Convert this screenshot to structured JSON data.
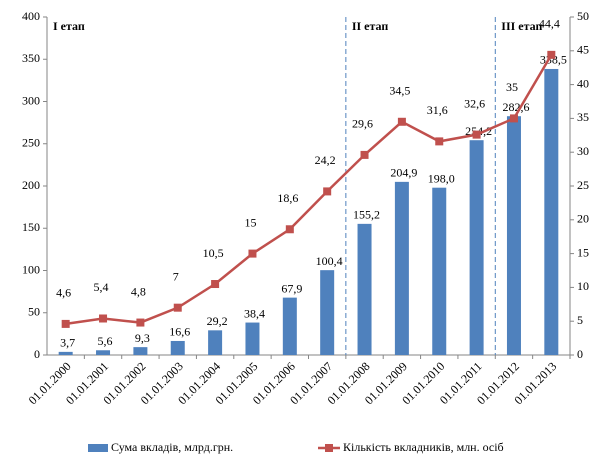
{
  "chart_data": {
    "type": "bar-line",
    "categories": [
      "01.01.2000",
      "01.01.2001",
      "01.01.2002",
      "01.01.2003",
      "01.01.2004",
      "01.01.2005",
      "01.01.2006",
      "01.01.2007",
      "01.01.2008",
      "01.01.2009",
      "01.01.2010",
      "01.01.2011",
      "01.01.2012",
      "01.01.2013"
    ],
    "series": [
      {
        "name": "Сума вкладів, млрд.грн.",
        "color": "#4f81bd",
        "kind": "bar",
        "values": [
          3.7,
          5.6,
          9.3,
          16.6,
          29.2,
          38.4,
          67.9,
          100.4,
          155.2,
          204.9,
          198.0,
          254.2,
          282.6,
          338.5
        ],
        "value_labels": [
          "3,7",
          "5,6",
          "9,3",
          "16,6",
          "29,2",
          "38,4",
          "67,9",
          "100,4",
          "155,2",
          "204,9",
          "198,0",
          "254,2",
          "282,6",
          "338,5"
        ]
      },
      {
        "name": "Кількість вкладників, млн. осіб",
        "color": "#c0504d",
        "kind": "line",
        "axis": "y2",
        "values": [
          4.6,
          5.4,
          4.8,
          7,
          10.5,
          15,
          18.6,
          24.2,
          29.6,
          34.5,
          31.6,
          32.6,
          35,
          44.4
        ],
        "value_labels": [
          "4,6",
          "5,4",
          "4,8",
          "7",
          "10,5",
          "15",
          "18,6",
          "24,2",
          "29,6",
          "34,5",
          "31,6",
          "32,6",
          "35",
          "44,4"
        ]
      }
    ],
    "ylim": [
      0,
      400
    ],
    "yticks": [
      0,
      50,
      100,
      150,
      200,
      250,
      300,
      350,
      400
    ],
    "y2lim": [
      0,
      50
    ],
    "y2ticks": [
      0,
      5,
      10,
      15,
      20,
      25,
      30,
      35,
      40,
      45,
      50
    ],
    "annotations": [
      {
        "text": "I етап",
        "start": "01.01.2000"
      },
      {
        "text": "II етап",
        "start": "01.01.2008"
      },
      {
        "text": "III етап",
        "start": "01.01.2012"
      }
    ],
    "legend": "bottom"
  }
}
